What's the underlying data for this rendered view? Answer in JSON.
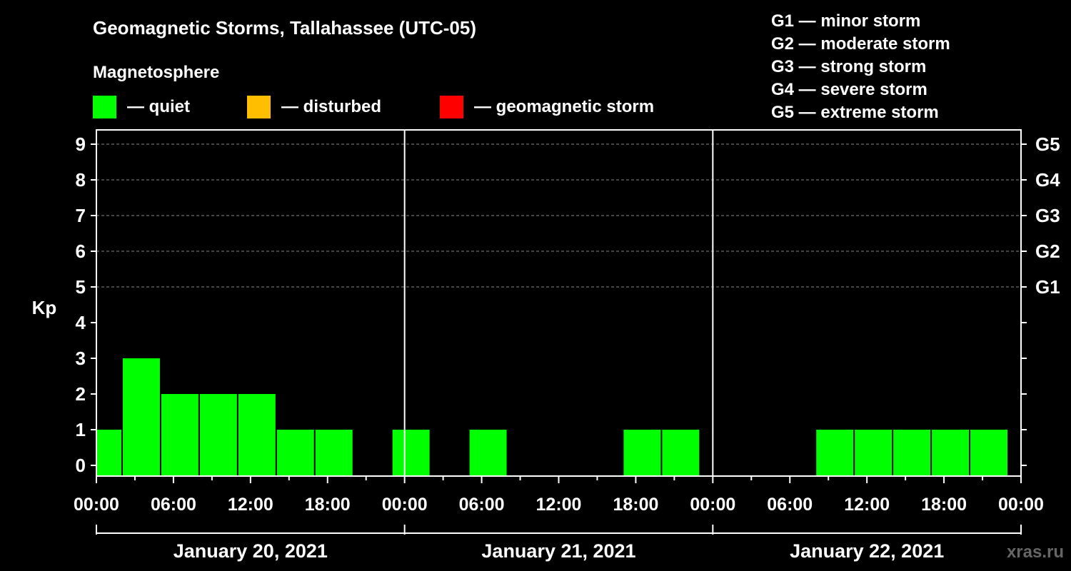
{
  "title": "Geomagnetic Storms, Tallahassee (UTC-05)",
  "watermark": "xras.ru",
  "legend": {
    "heading": "Magnetosphere",
    "items": [
      {
        "color": "#00ff00",
        "label": "— quiet"
      },
      {
        "color": "#ffbf00",
        "label": "— disturbed"
      },
      {
        "color": "#ff0000",
        "label": "— geomagnetic storm"
      }
    ]
  },
  "storm_scale": [
    "G1 — minor storm",
    "G2 — moderate storm",
    "G3 — strong storm",
    "G4 — severe storm",
    "G5 — extreme storm"
  ],
  "chart_data": {
    "type": "bar",
    "ylabel": "Kp",
    "ylim": [
      0,
      9
    ],
    "y_ticks": [
      "0",
      "1",
      "2",
      "3",
      "4",
      "5",
      "6",
      "7",
      "8",
      "9"
    ],
    "right_ticks": [
      {
        "kp": 5,
        "label": "G1"
      },
      {
        "kp": 6,
        "label": "G2"
      },
      {
        "kp": 7,
        "label": "G3"
      },
      {
        "kp": 8,
        "label": "G4"
      },
      {
        "kp": 9,
        "label": "G5"
      }
    ],
    "x_tick_labels": [
      "00:00",
      "06:00",
      "12:00",
      "18:00",
      "00:00",
      "06:00",
      "12:00",
      "18:00",
      "00:00",
      "06:00",
      "12:00",
      "18:00",
      "00:00"
    ],
    "days": [
      "January 20, 2021",
      "January 21, 2021",
      "January 22, 2021"
    ],
    "bar_color": "#00ff00",
    "grid": "dashed horizontal at Kp 5-9",
    "bars": [
      {
        "start_hour": -1,
        "end_hour": 2,
        "kp": 1
      },
      {
        "start_hour": 2,
        "end_hour": 5,
        "kp": 3
      },
      {
        "start_hour": 5,
        "end_hour": 8,
        "kp": 2
      },
      {
        "start_hour": 8,
        "end_hour": 11,
        "kp": 2
      },
      {
        "start_hour": 11,
        "end_hour": 14,
        "kp": 2
      },
      {
        "start_hour": 14,
        "end_hour": 17,
        "kp": 1
      },
      {
        "start_hour": 17,
        "end_hour": 20,
        "kp": 1
      },
      {
        "start_hour": 20,
        "end_hour": 23,
        "kp": 0
      },
      {
        "start_hour": 23,
        "end_hour": 26,
        "kp": 1
      },
      {
        "start_hour": 26,
        "end_hour": 29,
        "kp": 0
      },
      {
        "start_hour": 29,
        "end_hour": 32,
        "kp": 1
      },
      {
        "start_hour": 32,
        "end_hour": 35,
        "kp": 0
      },
      {
        "start_hour": 35,
        "end_hour": 38,
        "kp": 0
      },
      {
        "start_hour": 38,
        "end_hour": 41,
        "kp": 0
      },
      {
        "start_hour": 41,
        "end_hour": 44,
        "kp": 1
      },
      {
        "start_hour": 44,
        "end_hour": 47,
        "kp": 1
      },
      {
        "start_hour": 47,
        "end_hour": 50,
        "kp": 0
      },
      {
        "start_hour": 50,
        "end_hour": 53,
        "kp": 0
      },
      {
        "start_hour": 53,
        "end_hour": 56,
        "kp": 0
      },
      {
        "start_hour": 56,
        "end_hour": 59,
        "kp": 1
      },
      {
        "start_hour": 59,
        "end_hour": 62,
        "kp": 1
      },
      {
        "start_hour": 62,
        "end_hour": 65,
        "kp": 1
      },
      {
        "start_hour": 65,
        "end_hour": 68,
        "kp": 1
      },
      {
        "start_hour": 68,
        "end_hour": 71,
        "kp": 1
      }
    ]
  }
}
